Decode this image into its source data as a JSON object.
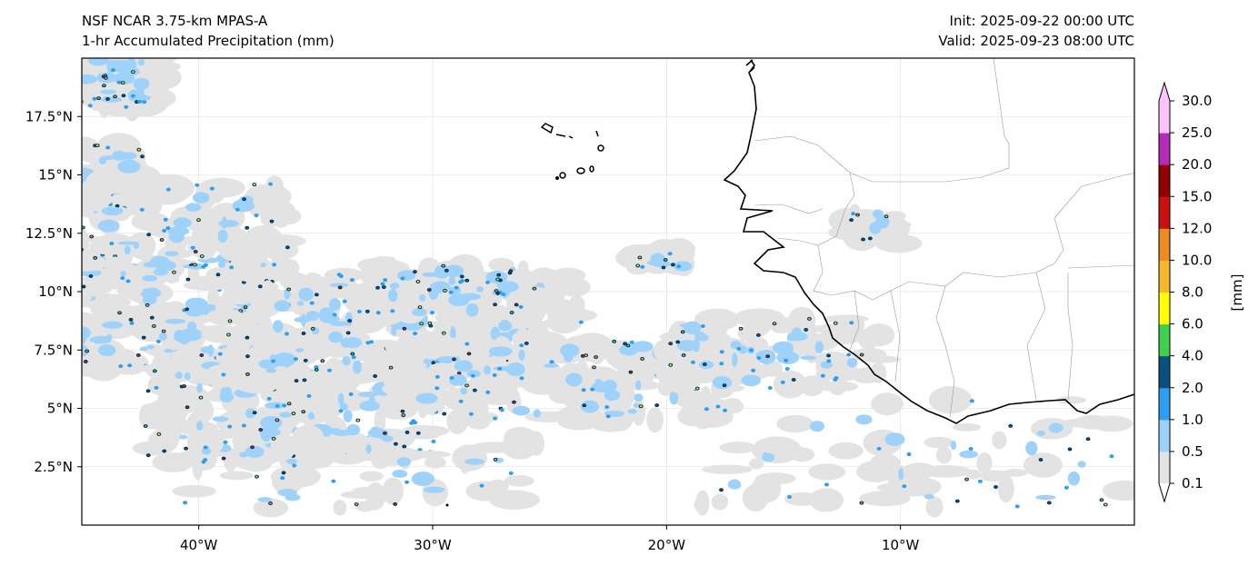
{
  "header": {
    "model": "NSF NCAR 3.75-km MPAS-A",
    "field": "1-hr Accumulated Precipitation (mm)",
    "init": "Init: 2025-09-22 00:00 UTC",
    "valid": "Valid: 2025-09-23 08:00 UTC"
  },
  "map": {
    "lon_range": [
      -45,
      0
    ],
    "lat_range": [
      0,
      20
    ],
    "lon_ticks": [
      {
        "value": -40,
        "label": "40°W"
      },
      {
        "value": -30,
        "label": "30°W"
      },
      {
        "value": -20,
        "label": "20°W"
      },
      {
        "value": -10,
        "label": "10°W"
      }
    ],
    "lat_ticks": [
      {
        "value": 17.5,
        "label": "17.5°N"
      },
      {
        "value": 15,
        "label": "15°N"
      },
      {
        "value": 12.5,
        "label": "12.5°N"
      },
      {
        "value": 10,
        "label": "10°N"
      },
      {
        "value": 7.5,
        "label": "7.5°N"
      },
      {
        "value": 5,
        "label": "5°N"
      },
      {
        "value": 2.5,
        "label": "2.5°N"
      }
    ]
  },
  "colorbar": {
    "label": "[mm]",
    "levels": [
      "0.1",
      "0.5",
      "1.0",
      "2.0",
      "4.0",
      "6.0",
      "8.0",
      "10.0",
      "12.0",
      "15.0",
      "20.0",
      "25.0",
      "30.0"
    ],
    "colors": [
      "#e3e3e3",
      "#9fd2fb",
      "#2d9ef0",
      "#08507e",
      "#3fd050",
      "#ffff00",
      "#f6b62e",
      "#ea8b24",
      "#cb1010",
      "#920000",
      "#b32cb9",
      "#ffc4fb"
    ],
    "over_color": "#ffc4fb",
    "under_color": "#ffffff"
  }
}
